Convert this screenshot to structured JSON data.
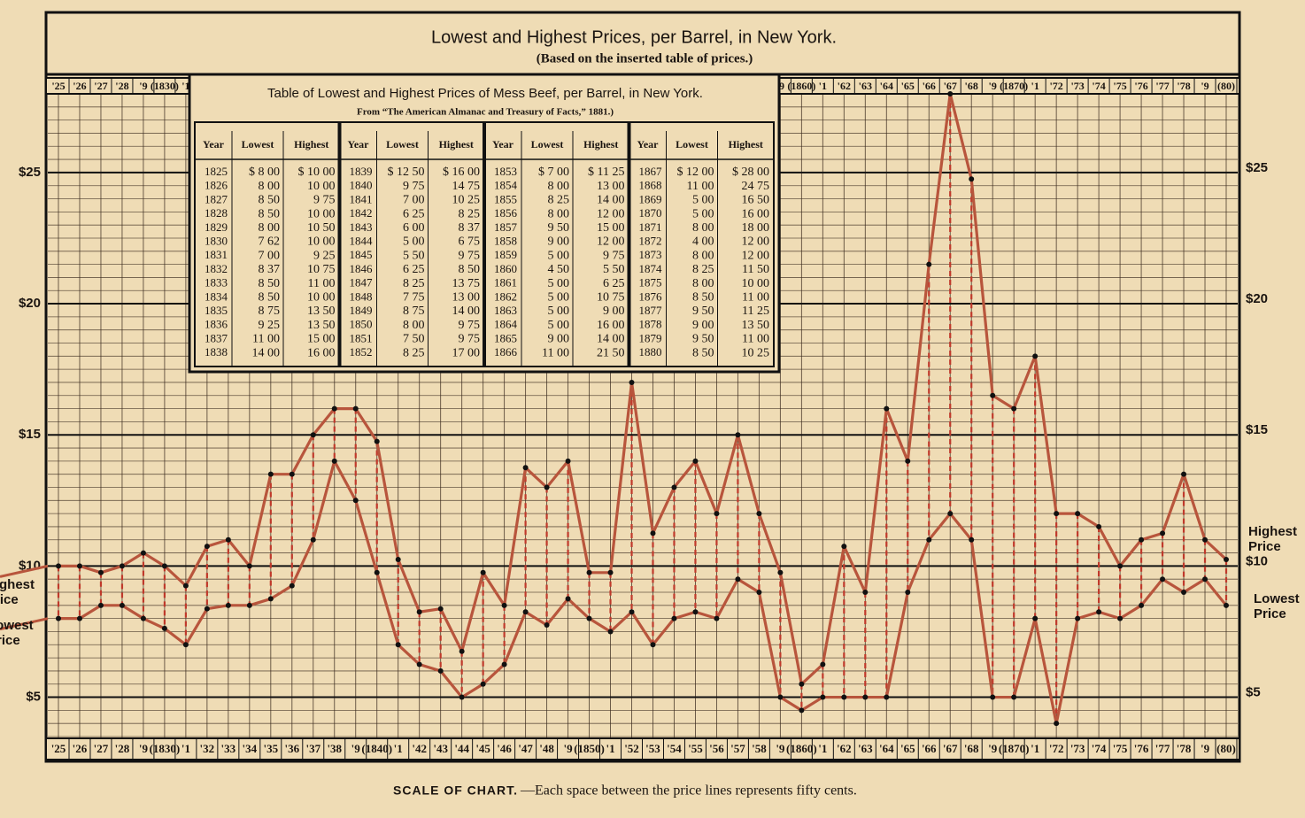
{
  "chart_data": {
    "type": "line",
    "title": "Lowest and Highest Prices, per Barrel, in New York.",
    "subtitle": "(Based on the inserted table of prices.)",
    "caption": {
      "label": "SCALE OF CHART.",
      "text": "—Each space between the price lines represents fifty cents."
    },
    "categories": [
      "'25",
      "'26",
      "'27",
      "'28",
      "'9",
      "(1830)",
      "'1",
      "'32",
      "'33",
      "'34",
      "'35",
      "'36",
      "'37",
      "'38",
      "'9",
      "(1840)",
      "'1",
      "'42",
      "'43",
      "'44",
      "'45",
      "'46",
      "'47",
      "'48",
      "'9",
      "(1850)",
      "'1",
      "'52",
      "'53",
      "'54",
      "'55",
      "'56",
      "'57",
      "'58",
      "'9",
      "(1860)",
      "'1",
      "'62",
      "'63",
      "'64",
      "'65",
      "'66",
      "'67",
      "'68",
      "'9",
      "(1870)",
      "'1",
      "'72",
      "'73",
      "'74",
      "'75",
      "'76",
      "'77",
      "'78",
      "'9",
      "(80)"
    ],
    "series": [
      {
        "name": "Highest Price",
        "color": "#b8553c",
        "values": [
          10,
          10,
          9.75,
          10,
          10.5,
          10,
          9.25,
          10.75,
          11,
          10,
          13.5,
          13.5,
          15,
          16,
          16,
          14.75,
          10.25,
          8.25,
          8.37,
          6.75,
          9.75,
          8.5,
          13.75,
          13,
          14,
          9.75,
          9.75,
          17,
          11.25,
          13,
          14,
          12,
          15,
          12,
          9.75,
          5.5,
          6.25,
          10.75,
          9,
          16,
          14,
          21.5,
          28,
          24.75,
          16.5,
          16,
          18,
          12,
          12,
          11.5,
          10,
          11,
          11.25,
          13.5,
          11,
          10.25
        ]
      },
      {
        "name": "Lowest Price",
        "color": "#b8553c",
        "values": [
          8,
          8,
          8.5,
          8.5,
          8,
          7.62,
          7,
          8.37,
          8.5,
          8.5,
          8.75,
          9.25,
          11,
          14,
          12.5,
          9.75,
          7,
          6.25,
          6,
          5,
          5.5,
          6.25,
          8.25,
          7.75,
          8.75,
          8,
          7.5,
          8.25,
          7,
          8,
          8.25,
          8,
          9.5,
          9,
          5,
          4.5,
          5,
          5,
          5,
          5,
          9,
          11,
          12,
          11,
          5,
          5,
          8,
          4,
          8,
          8.25,
          8,
          8.5,
          9.5,
          9,
          9.5,
          8.5
        ]
      }
    ],
    "ylim": [
      3.5,
      28
    ],
    "yticks": [
      {
        "value": 5,
        "label": "$5"
      },
      {
        "value": 10,
        "label": "$10"
      },
      {
        "value": 15,
        "label": "$15"
      },
      {
        "value": 20,
        "label": "$20"
      },
      {
        "value": 25,
        "label": "$25"
      }
    ],
    "minor_grid": 0.5,
    "grid": true,
    "marker_color": "#111111"
  },
  "table": {
    "title": "Table of Lowest and Highest Prices of Mess Beef, per Barrel, in New York.",
    "source": "From “The American Almanac and Treasury of Facts,” 1881.)",
    "columns": [
      "Year",
      "Lowest",
      "Highest"
    ],
    "rows": [
      [
        "1825",
        "$ 8 00",
        "$ 10 00"
      ],
      [
        "1826",
        "8 00",
        "10 00"
      ],
      [
        "1827",
        "8 50",
        "9 75"
      ],
      [
        "1828",
        "8 50",
        "10 00"
      ],
      [
        "1829",
        "8 00",
        "10 50"
      ],
      [
        "1830",
        "7 62",
        "10 00"
      ],
      [
        "1831",
        "7 00",
        "9 25"
      ],
      [
        "1832",
        "8 37",
        "10 75"
      ],
      [
        "1833",
        "8 50",
        "11 00"
      ],
      [
        "1834",
        "8 50",
        "10 00"
      ],
      [
        "1835",
        "8 75",
        "13 50"
      ],
      [
        "1836",
        "9 25",
        "13 50"
      ],
      [
        "1837",
        "11 00",
        "15 00"
      ],
      [
        "1838",
        "14 00",
        "16 00"
      ],
      [
        "1839",
        "$ 12 50",
        "$ 16 00"
      ],
      [
        "1840",
        "9 75",
        "14 75"
      ],
      [
        "1841",
        "7 00",
        "10 25"
      ],
      [
        "1842",
        "6 25",
        "8 25"
      ],
      [
        "1843",
        "6 00",
        "8 37"
      ],
      [
        "1844",
        "5 00",
        "6 75"
      ],
      [
        "1845",
        "5 50",
        "9 75"
      ],
      [
        "1846",
        "6 25",
        "8 50"
      ],
      [
        "1847",
        "8 25",
        "13 75"
      ],
      [
        "1848",
        "7 75",
        "13 00"
      ],
      [
        "1849",
        "8 75",
        "14 00"
      ],
      [
        "1850",
        "8 00",
        "9 75"
      ],
      [
        "1851",
        "7 50",
        "9 75"
      ],
      [
        "1852",
        "8 25",
        "17 00"
      ],
      [
        "1853",
        "$ 7 00",
        "$ 11 25"
      ],
      [
        "1854",
        "8 00",
        "13 00"
      ],
      [
        "1855",
        "8 25",
        "14 00"
      ],
      [
        "1856",
        "8 00",
        "12 00"
      ],
      [
        "1857",
        "9 50",
        "15 00"
      ],
      [
        "1858",
        "9 00",
        "12 00"
      ],
      [
        "1859",
        "5 00",
        "9 75"
      ],
      [
        "1860",
        "4 50",
        "5 50"
      ],
      [
        "1861",
        "5 00",
        "6 25"
      ],
      [
        "1862",
        "5 00",
        "10 75"
      ],
      [
        "1863",
        "5 00",
        "9 00"
      ],
      [
        "1864",
        "5 00",
        "16 00"
      ],
      [
        "1865",
        "9 00",
        "14 00"
      ],
      [
        "1866",
        "11 00",
        "21 50"
      ],
      [
        "1867",
        "$ 12 00",
        "$ 28 00"
      ],
      [
        "1868",
        "11 00",
        "24 75"
      ],
      [
        "1869",
        "5 00",
        "16 50"
      ],
      [
        "1870",
        "5 00",
        "16 00"
      ],
      [
        "1871",
        "8 00",
        "18 00"
      ],
      [
        "1872",
        "4 00",
        "12 00"
      ],
      [
        "1873",
        "8 00",
        "12 00"
      ],
      [
        "1874",
        "8 25",
        "11 50"
      ],
      [
        "1875",
        "8 00",
        "10 00"
      ],
      [
        "1876",
        "8 50",
        "11 00"
      ],
      [
        "1877",
        "9 50",
        "11 25"
      ],
      [
        "1878",
        "9 00",
        "13 50"
      ],
      [
        "1879",
        "9 50",
        "11 00"
      ],
      [
        "1880",
        "8 50",
        "10 25"
      ]
    ]
  }
}
